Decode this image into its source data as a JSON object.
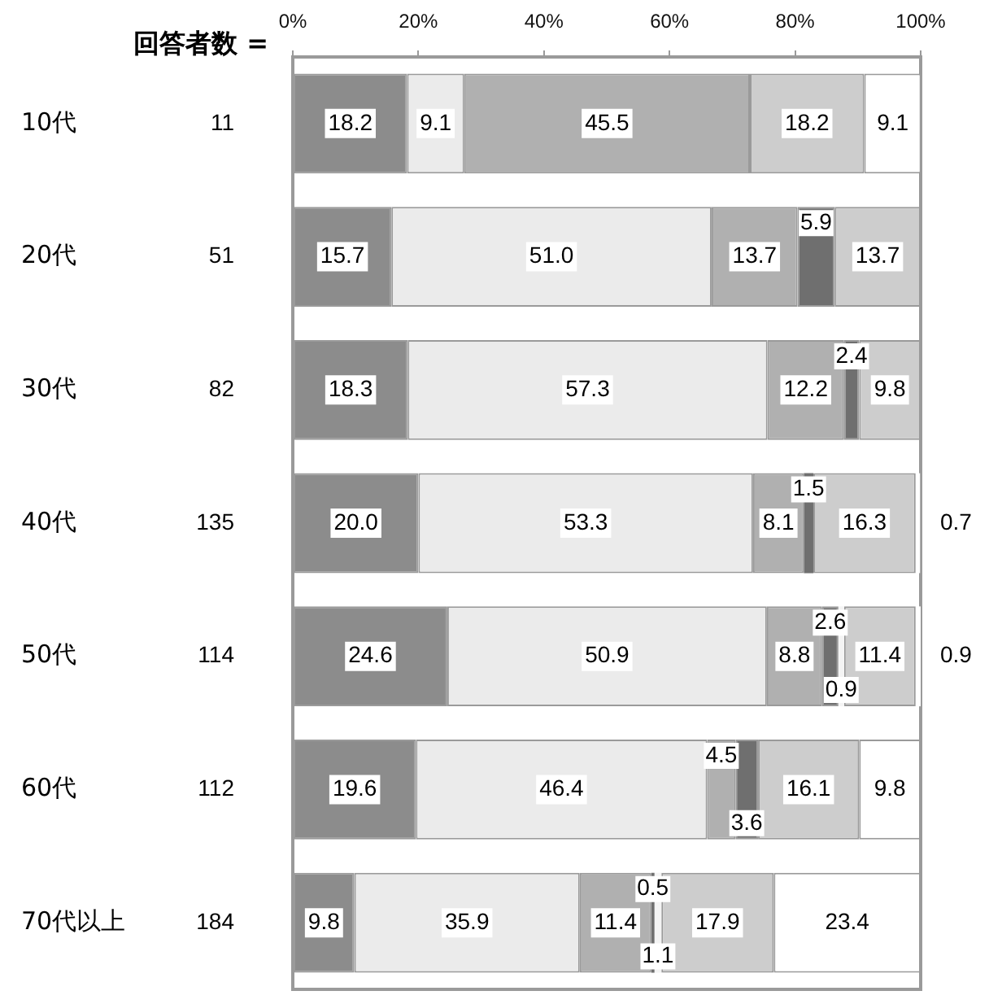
{
  "chart_data": {
    "type": "bar",
    "orientation": "horizontal",
    "stacked": true,
    "categories": [
      "10代",
      "20代",
      "30代",
      "40代",
      "50代",
      "60代",
      "70代以上"
    ],
    "series": [
      {
        "color": "#8c8c8c",
        "values": [
          18.2,
          15.7,
          18.3,
          20.0,
          24.6,
          19.6,
          9.8
        ],
        "value_labels": [
          "18.2",
          "15.7",
          "18.3",
          "20.0",
          "24.6",
          "19.6",
          "9.8"
        ]
      },
      {
        "color": "#ebebeb",
        "values": [
          9.1,
          51.0,
          57.3,
          53.3,
          50.9,
          46.4,
          35.9
        ],
        "value_labels": [
          "9.1",
          "51.0",
          "57.3",
          "53.3",
          "50.9",
          "46.4",
          "35.9"
        ]
      },
      {
        "color": "#b0b0b0",
        "values": [
          45.5,
          13.7,
          12.2,
          8.1,
          8.8,
          4.5,
          11.4
        ],
        "value_labels": [
          "45.5",
          "13.7",
          "12.2",
          "8.1",
          "8.8",
          "4.5",
          "11.4"
        ]
      },
      {
        "color": "#6f6f6f",
        "values": [
          null,
          5.9,
          2.4,
          1.5,
          2.6,
          3.6,
          0.5
        ],
        "value_labels": [
          null,
          "5.9",
          "2.4",
          "1.5",
          "2.6",
          "3.6",
          "0.5"
        ]
      },
      {
        "color": "#f4f4f4",
        "values": [
          null,
          null,
          null,
          null,
          0.9,
          null,
          1.1
        ],
        "value_labels": [
          null,
          null,
          null,
          null,
          "0.9",
          null,
          "1.1"
        ]
      },
      {
        "color": "#cdcdcd",
        "values": [
          18.2,
          13.7,
          9.8,
          16.3,
          11.4,
          16.1,
          17.9
        ],
        "value_labels": [
          "18.2",
          "13.7",
          "9.8",
          "16.3",
          "11.4",
          "16.1",
          "17.9"
        ]
      },
      {
        "color": "#ffffff",
        "values": [
          9.1,
          null,
          null,
          0.7,
          0.9,
          9.8,
          23.4
        ],
        "value_labels": [
          "9.1",
          null,
          null,
          "0.7",
          "0.9",
          "9.8",
          "23.4"
        ]
      }
    ],
    "xlim": [
      0,
      100
    ],
    "xticks": [
      {
        "value": 0,
        "label": "0%"
      },
      {
        "value": 20,
        "label": "20%"
      },
      {
        "value": 40,
        "label": "40%"
      },
      {
        "value": 60,
        "label": "60%"
      },
      {
        "value": 80,
        "label": "80%"
      },
      {
        "value": 100,
        "label": "100%"
      }
    ],
    "annotations": [
      "回答者数 =",
      "11",
      "51",
      "82",
      "135",
      "114",
      "112",
      "184"
    ]
  }
}
